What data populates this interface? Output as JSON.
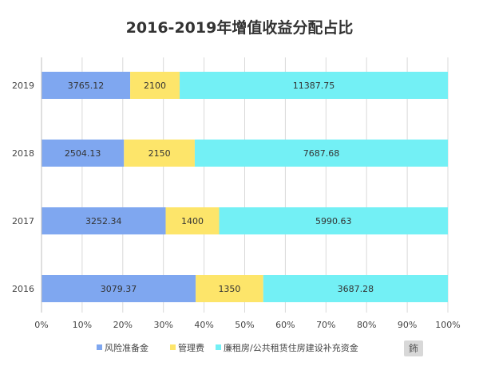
{
  "chart_data": {
    "type": "bar",
    "orientation": "horizontal",
    "stacked": "percent",
    "title": "2016-2019年增值收益分配占比",
    "categories": [
      "2019",
      "2018",
      "2017",
      "2016"
    ],
    "series": [
      {
        "name": "风险准备金",
        "color": "#7fa7f0",
        "values": [
          3765.12,
          2504.13,
          3252.34,
          3079.37
        ]
      },
      {
        "name": "管理费",
        "color": "#fde56a",
        "values": [
          2100,
          2150,
          1400,
          1350
        ]
      },
      {
        "name": "廉租房/公共租赁住房建设补充资金",
        "color": "#73f0f5",
        "values": [
          11387.75,
          7687.68,
          5990.63,
          3687.28
        ]
      }
    ],
    "value_labels": [
      [
        "3765.12",
        "2504.13",
        "3252.34",
        "3079.37"
      ],
      [
        "2100",
        "2150",
        "1400",
        "1350"
      ],
      [
        "11387.75",
        "7687.68",
        "5990.63",
        "3687.28"
      ]
    ],
    "x_ticks": [
      "0%",
      "10%",
      "20%",
      "30%",
      "40%",
      "50%",
      "60%",
      "70%",
      "80%",
      "90%",
      "100%"
    ],
    "xlim": [
      0,
      100
    ],
    "grid": true,
    "legend_position": "bottom"
  },
  "watermark_text": "鈽"
}
